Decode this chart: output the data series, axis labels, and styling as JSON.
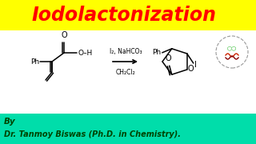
{
  "title": "Iodolactonization",
  "title_color": "#FF0000",
  "title_bg": "#FFFF00",
  "reagent_line1": "I₂, NaHCO₃",
  "reagent_line2": "CH₂Cl₂",
  "bottom_bg": "#00DDAA",
  "bottom_text_line1": "By",
  "bottom_text_line2": "Dr. Tanmoy Biswas (Ph.D. in Chemistry).",
  "bottom_text_color": "#004400",
  "main_bg": "#FFFFFF",
  "title_bar_height": 38,
  "bottom_bar_height": 38
}
